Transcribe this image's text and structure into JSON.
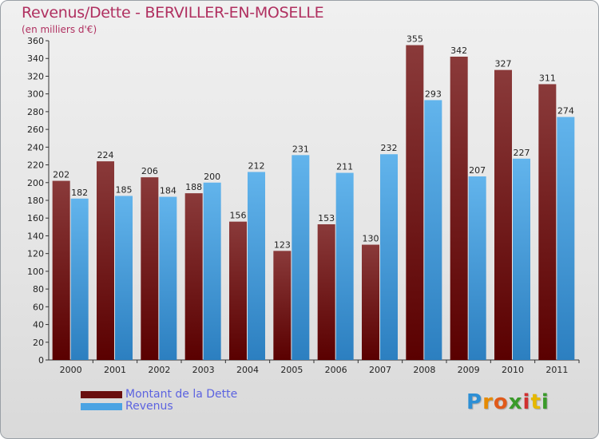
{
  "title": "Revenus/Dette - BERVILLER-EN-MOSELLE",
  "subtitle": "(en milliers d'€)",
  "colors": {
    "dette_top": "#8a3a3a",
    "dette_bottom": "#5a0000",
    "revenus_top": "#62b4ec",
    "revenus_bottom": "#2c7fc0",
    "axis": "#333333",
    "grid": "#cccccc"
  },
  "legend": [
    {
      "label": "Montant de la Dette",
      "color": "#6a0f0f"
    },
    {
      "label": "Revenus",
      "color": "#4aa3e3"
    }
  ],
  "logo": {
    "letters": [
      "P",
      "r",
      "o",
      "x",
      "i",
      "t",
      "i"
    ],
    "colors": [
      "#2d8fd5",
      "#e68a00",
      "#e05a1a",
      "#3a9a2a",
      "#d03030",
      "#e6b800",
      "#3a9a2a"
    ]
  },
  "chart_data": {
    "type": "bar",
    "title": "Revenus/Dette - BERVILLER-EN-MOSELLE",
    "ylabel": "(en milliers d'€)",
    "xlabel": "",
    "ylim": [
      0,
      360
    ],
    "ytick_step": 20,
    "grid": false,
    "legend_position": "bottom-left",
    "categories": [
      "2000",
      "2001",
      "2002",
      "2003",
      "2004",
      "2005",
      "2006",
      "2007",
      "2008",
      "2009",
      "2010",
      "2011"
    ],
    "series": [
      {
        "name": "Montant de la Dette",
        "values": [
          202,
          224,
          206,
          188,
          156,
          123,
          153,
          130,
          355,
          342,
          327,
          311
        ]
      },
      {
        "name": "Revenus",
        "values": [
          182,
          185,
          184,
          200,
          212,
          231,
          211,
          232,
          293,
          207,
          227,
          274
        ]
      }
    ]
  }
}
